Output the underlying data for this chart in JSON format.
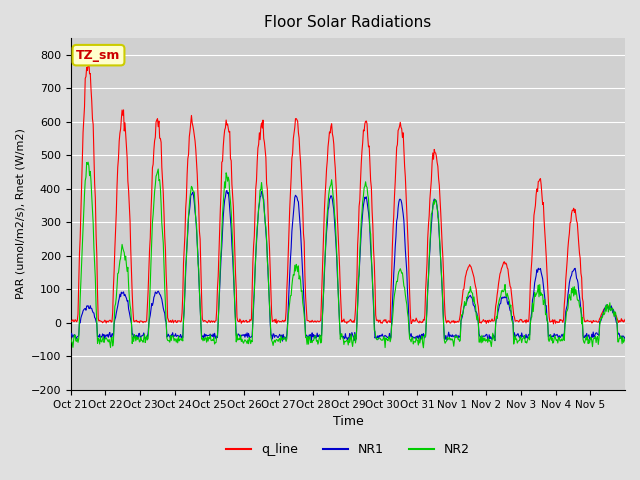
{
  "title": "Floor Solar Radiations",
  "xlabel": "Time",
  "ylabel": "PAR (umol/m2/s), Rnet (W/m2)",
  "ylim": [
    -200,
    850
  ],
  "yticks": [
    -200,
    -100,
    0,
    100,
    200,
    300,
    400,
    500,
    600,
    700,
    800
  ],
  "bg_color": "#e0e0e0",
  "plot_bg_color": "#d0d0d0",
  "grid_color": "#ffffff",
  "annotation_text": "TZ_sm",
  "annotation_bg": "#ffffcc",
  "annotation_border": "#cccc00",
  "annotation_text_color": "#cc0000",
  "line_colors": {
    "q_line": "#ff0000",
    "NR1": "#0000cc",
    "NR2": "#00cc00"
  },
  "legend_labels": [
    "q_line",
    "NR1",
    "NR2"
  ],
  "xtick_labels": [
    "Oct 21",
    "Oct 22",
    "Oct 23",
    "Oct 24",
    "Oct 25",
    "Oct 26",
    "Oct 27",
    "Oct 28",
    "Oct 29",
    "Oct 30",
    "Oct 31",
    "Nov 1",
    "Nov 2",
    "Nov 3",
    "Nov 4",
    "Nov 5"
  ],
  "n_days": 16,
  "points_per_day": 48,
  "q_peaks": [
    780,
    620,
    600,
    600,
    600,
    600,
    600,
    580,
    600,
    600,
    515,
    170,
    180,
    425,
    340,
    50
  ],
  "nr1_peaks": [
    50,
    90,
    90,
    390,
    395,
    390,
    380,
    380,
    380,
    370,
    370,
    80,
    80,
    160,
    160,
    50
  ],
  "nr2_peaks": [
    480,
    220,
    450,
    400,
    445,
    400,
    165,
    415,
    415,
    150,
    375,
    95,
    100,
    100,
    100,
    50
  ]
}
